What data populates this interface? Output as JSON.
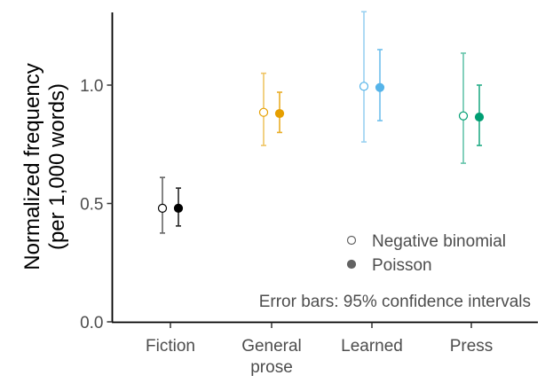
{
  "chart_data": {
    "type": "scatter",
    "title": "",
    "xlabel": "",
    "ylabel": [
      "Normalized frequency",
      "(per 1,000 words)"
    ],
    "ylim": [
      0,
      1.3
    ],
    "yticks": [
      0.0,
      0.5,
      1.0
    ],
    "ytick_labels": [
      "0.0",
      "0.5",
      "1.0"
    ],
    "grid": false,
    "categories": [
      {
        "id": "fiction",
        "lines": [
          "Fiction"
        ],
        "color": "#000000"
      },
      {
        "id": "general-prose",
        "lines": [
          "General",
          "prose"
        ],
        "color": "#E69F00"
      },
      {
        "id": "learned",
        "lines": [
          "Learned"
        ],
        "color": "#56B4E9"
      },
      {
        "id": "press",
        "lines": [
          "Press"
        ],
        "color": "#009E73"
      }
    ],
    "series": [
      {
        "name": "Negative binomial",
        "marker": "hollow-circle",
        "values": [
          0.48,
          0.885,
          0.995,
          0.87
        ],
        "ci_low": [
          0.375,
          0.745,
          0.76,
          0.67
        ],
        "ci_high": [
          0.61,
          1.05,
          1.31,
          1.135
        ]
      },
      {
        "name": "Poisson",
        "marker": "filled-circle",
        "values": [
          0.48,
          0.88,
          0.99,
          0.865
        ],
        "ci_low": [
          0.405,
          0.8,
          0.85,
          0.745
        ],
        "ci_high": [
          0.565,
          0.97,
          1.15,
          1.0
        ]
      }
    ],
    "legend": {
      "placement": "bottom-right",
      "symbol_color": "#636363"
    },
    "annotation": "Error bars: 95% confidence intervals"
  }
}
